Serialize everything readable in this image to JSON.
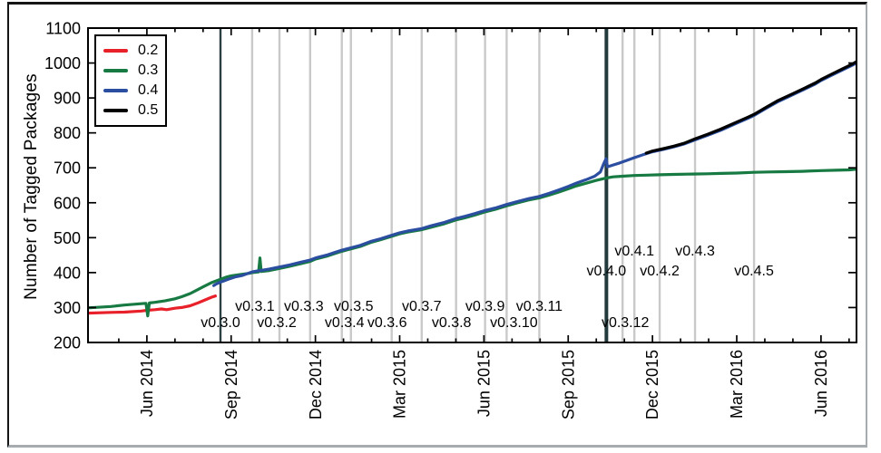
{
  "figure": {
    "ylabel": "Number of Tagged Packages"
  },
  "legend": {
    "items": [
      {
        "label": "0.2",
        "color": "#e8202a"
      },
      {
        "label": "0.3",
        "color": "#177a42"
      },
      {
        "label": "0.4",
        "color": "#2b4ea0"
      },
      {
        "label": "0.5",
        "color": "#000000"
      }
    ]
  },
  "chart_data": {
    "type": "line",
    "title": "",
    "xlabel": "",
    "ylabel": "Number of Tagged Packages",
    "ylim": [
      200,
      1100
    ],
    "xlim_years": [
      2014.242,
      2016.522
    ],
    "grid": "vertical-release-lines",
    "legend_position": "upper-left",
    "colors": {
      "grid_line": "#c9c9c9",
      "release_dark": "#2c4043",
      "release_major": "#233a3c",
      "axis": "#000000"
    },
    "y_ticks": [
      200,
      300,
      400,
      500,
      600,
      700,
      800,
      900,
      1000,
      1100
    ],
    "x_ticks": [
      {
        "year": 2014.417,
        "label": "Jun 2014"
      },
      {
        "year": 2014.667,
        "label": "Sep 2014"
      },
      {
        "year": 2014.917,
        "label": "Dec 2014"
      },
      {
        "year": 2015.167,
        "label": "Mar 2015"
      },
      {
        "year": 2015.417,
        "label": "Jun 2015"
      },
      {
        "year": 2015.667,
        "label": "Sep 2015"
      },
      {
        "year": 2015.917,
        "label": "Dec 2015"
      },
      {
        "year": 2016.167,
        "label": "Mar 2016"
      },
      {
        "year": 2016.417,
        "label": "Jun 2016"
      }
    ],
    "releases": [
      {
        "label": "v0.3.0",
        "year": 2014.635,
        "row": "v3l",
        "emph": 1,
        "dx": 0
      },
      {
        "label": "v0.3.1",
        "year": 2014.729,
        "row": "v3u",
        "emph": 0,
        "dx": 3
      },
      {
        "label": "v0.3.2",
        "year": 2014.81,
        "row": "v3l",
        "emph": 0,
        "dx": -3
      },
      {
        "label": "v0.3.3",
        "year": 2014.901,
        "row": "v3u",
        "emph": 0,
        "dx": -7
      },
      {
        "label": "v0.3.4",
        "year": 2014.995,
        "row": "v3l",
        "emph": 0,
        "dx": 3
      },
      {
        "label": "v0.3.5",
        "year": 2015.022,
        "row": "v3u",
        "emph": 0,
        "dx": 3
      },
      {
        "label": "v0.3.6",
        "year": 2015.143,
        "row": "v3l",
        "emph": 0,
        "dx": -5
      },
      {
        "label": "v0.3.7",
        "year": 2015.232,
        "row": "v3u",
        "emph": 0,
        "dx": 0
      },
      {
        "label": "v0.3.8",
        "year": 2015.334,
        "row": "v3l",
        "emph": 0,
        "dx": -5
      },
      {
        "label": "v0.3.9",
        "year": 2015.42,
        "row": "v3u",
        "emph": 0,
        "dx": 0
      },
      {
        "label": "v0.3.10",
        "year": 2015.484,
        "row": "v3l",
        "emph": 0,
        "dx": 8
      },
      {
        "label": "v0.3.11",
        "year": 2015.581,
        "row": "v3u",
        "emph": 0,
        "dx": 0
      },
      {
        "label": "v0.3.12",
        "year": 2015.828,
        "row": "v3l",
        "emph": 0,
        "dx": 3
      },
      {
        "label": "v0.4.0",
        "year": 2015.78,
        "row": "v4l",
        "emph": 2,
        "dx": 0
      },
      {
        "label": "v0.4.1",
        "year": 2015.863,
        "row": "v4u",
        "emph": 0,
        "dx": 0
      },
      {
        "label": "v0.4.2",
        "year": 2015.938,
        "row": "v4l",
        "emph": 0,
        "dx": 0
      },
      {
        "label": "v0.4.3",
        "year": 2016.043,
        "row": "v4u",
        "emph": 0,
        "dx": 0
      },
      {
        "label": "v0.4.5",
        "year": 2016.218,
        "row": "v4l",
        "emph": 0,
        "dx": 0
      }
    ],
    "series": [
      {
        "name": "0.2",
        "color": "#e8202a",
        "points": [
          [
            2014.242,
            284
          ],
          [
            2014.31,
            286
          ],
          [
            2014.35,
            287
          ],
          [
            2014.4,
            290
          ],
          [
            2014.417,
            292
          ],
          [
            2014.44,
            294
          ],
          [
            2014.46,
            296
          ],
          [
            2014.475,
            294
          ],
          [
            2014.5,
            298
          ],
          [
            2014.52,
            300
          ],
          [
            2014.545,
            305
          ],
          [
            2014.565,
            312
          ],
          [
            2014.58,
            318
          ],
          [
            2014.6,
            326
          ],
          [
            2014.61,
            330
          ],
          [
            2014.62,
            333
          ]
        ]
      },
      {
        "name": "0.3",
        "color": "#177a42",
        "points": [
          [
            2014.242,
            299
          ],
          [
            2014.31,
            303
          ],
          [
            2014.35,
            307
          ],
          [
            2014.4,
            311
          ],
          [
            2014.414,
            312
          ],
          [
            2014.419,
            276
          ],
          [
            2014.424,
            313
          ],
          [
            2014.44,
            315
          ],
          [
            2014.47,
            319
          ],
          [
            2014.5,
            325
          ],
          [
            2014.52,
            331
          ],
          [
            2014.545,
            340
          ],
          [
            2014.565,
            350
          ],
          [
            2014.585,
            360
          ],
          [
            2014.61,
            372
          ],
          [
            2014.635,
            381
          ],
          [
            2014.655,
            388
          ],
          [
            2014.667,
            391
          ],
          [
            2014.69,
            394
          ],
          [
            2014.72,
            398
          ],
          [
            2014.729,
            400
          ],
          [
            2014.748,
            402
          ],
          [
            2014.752,
            442
          ],
          [
            2014.756,
            403
          ],
          [
            2014.78,
            406
          ],
          [
            2014.81,
            412
          ],
          [
            2014.84,
            418
          ],
          [
            2014.87,
            425
          ],
          [
            2014.901,
            432
          ],
          [
            2014.917,
            439
          ],
          [
            2014.95,
            447
          ],
          [
            2014.975,
            455
          ],
          [
            2014.995,
            461
          ],
          [
            2015.022,
            468
          ],
          [
            2015.05,
            475
          ],
          [
            2015.08,
            486
          ],
          [
            2015.11,
            494
          ],
          [
            2015.143,
            504
          ],
          [
            2015.167,
            511
          ],
          [
            2015.19,
            516
          ],
          [
            2015.232,
            523
          ],
          [
            2015.26,
            530
          ],
          [
            2015.3,
            540
          ],
          [
            2015.334,
            551
          ],
          [
            2015.36,
            557
          ],
          [
            2015.39,
            565
          ],
          [
            2015.417,
            573
          ],
          [
            2015.45,
            581
          ],
          [
            2015.484,
            591
          ],
          [
            2015.51,
            598
          ],
          [
            2015.55,
            608
          ],
          [
            2015.581,
            614
          ],
          [
            2015.61,
            622
          ],
          [
            2015.64,
            631
          ],
          [
            2015.667,
            640
          ],
          [
            2015.69,
            648
          ],
          [
            2015.72,
            656
          ],
          [
            2015.75,
            664
          ],
          [
            2015.78,
            671
          ],
          [
            2015.8,
            674
          ],
          [
            2015.828,
            676
          ],
          [
            2015.863,
            678
          ],
          [
            2015.9,
            679
          ],
          [
            2015.938,
            680
          ],
          [
            2015.98,
            681
          ],
          [
            2016.02,
            682
          ],
          [
            2016.08,
            683
          ],
          [
            2016.12,
            684
          ],
          [
            2016.167,
            685
          ],
          [
            2016.218,
            687
          ],
          [
            2016.26,
            688
          ],
          [
            2016.31,
            689
          ],
          [
            2016.36,
            690
          ],
          [
            2016.417,
            692
          ],
          [
            2016.46,
            693
          ],
          [
            2016.5,
            694
          ],
          [
            2016.522,
            696
          ]
        ]
      },
      {
        "name": "0.4",
        "color": "#2b4ea0",
        "points": [
          [
            2014.615,
            363
          ],
          [
            2014.62,
            366
          ],
          [
            2014.628,
            370
          ],
          [
            2014.635,
            373
          ],
          [
            2014.645,
            376
          ],
          [
            2014.655,
            380
          ],
          [
            2014.667,
            384
          ],
          [
            2014.68,
            388
          ],
          [
            2014.7,
            392
          ],
          [
            2014.715,
            397
          ],
          [
            2014.729,
            402
          ],
          [
            2014.74,
            404
          ],
          [
            2014.76,
            407
          ],
          [
            2014.78,
            410
          ],
          [
            2014.81,
            416
          ],
          [
            2014.84,
            422
          ],
          [
            2014.87,
            429
          ],
          [
            2014.901,
            436
          ],
          [
            2014.917,
            442
          ],
          [
            2014.95,
            450
          ],
          [
            2014.975,
            458
          ],
          [
            2014.995,
            464
          ],
          [
            2015.022,
            471
          ],
          [
            2015.05,
            478
          ],
          [
            2015.08,
            489
          ],
          [
            2015.11,
            497
          ],
          [
            2015.143,
            507
          ],
          [
            2015.167,
            514
          ],
          [
            2015.19,
            519
          ],
          [
            2015.232,
            526
          ],
          [
            2015.26,
            534
          ],
          [
            2015.3,
            544
          ],
          [
            2015.334,
            555
          ],
          [
            2015.36,
            561
          ],
          [
            2015.39,
            569
          ],
          [
            2015.417,
            577
          ],
          [
            2015.45,
            585
          ],
          [
            2015.484,
            595
          ],
          [
            2015.51,
            602
          ],
          [
            2015.55,
            612
          ],
          [
            2015.581,
            618
          ],
          [
            2015.61,
            627
          ],
          [
            2015.64,
            637
          ],
          [
            2015.667,
            647
          ],
          [
            2015.69,
            656
          ],
          [
            2015.72,
            666
          ],
          [
            2015.745,
            676
          ],
          [
            2015.762,
            688
          ],
          [
            2015.772,
            712
          ],
          [
            2015.779,
            726
          ],
          [
            2015.783,
            703
          ],
          [
            2015.8,
            708
          ],
          [
            2015.82,
            714
          ],
          [
            2015.84,
            721
          ],
          [
            2015.863,
            729
          ],
          [
            2015.89,
            738
          ],
          [
            2015.917,
            746
          ],
          [
            2015.95,
            753
          ],
          [
            2015.98,
            760
          ],
          [
            2016.01,
            768
          ],
          [
            2016.043,
            780
          ],
          [
            2016.08,
            793
          ],
          [
            2016.12,
            808
          ],
          [
            2016.167,
            828
          ],
          [
            2016.2,
            842
          ],
          [
            2016.218,
            850
          ],
          [
            2016.25,
            868
          ],
          [
            2016.29,
            890
          ],
          [
            2016.33,
            908
          ],
          [
            2016.37,
            926
          ],
          [
            2016.4,
            940
          ],
          [
            2016.417,
            950
          ],
          [
            2016.45,
            966
          ],
          [
            2016.48,
            980
          ],
          [
            2016.51,
            994
          ],
          [
            2016.522,
            1000
          ]
        ]
      },
      {
        "name": "0.5",
        "color": "#000000",
        "points": [
          [
            2015.898,
            742
          ],
          [
            2015.917,
            748
          ],
          [
            2015.95,
            755
          ],
          [
            2015.98,
            762
          ],
          [
            2016.01,
            770
          ],
          [
            2016.043,
            783
          ],
          [
            2016.08,
            796
          ],
          [
            2016.12,
            811
          ],
          [
            2016.167,
            831
          ],
          [
            2016.2,
            845
          ],
          [
            2016.218,
            853
          ],
          [
            2016.25,
            871
          ],
          [
            2016.29,
            893
          ],
          [
            2016.33,
            911
          ],
          [
            2016.37,
            929
          ],
          [
            2016.4,
            943
          ],
          [
            2016.417,
            953
          ],
          [
            2016.45,
            969
          ],
          [
            2016.48,
            983
          ],
          [
            2016.51,
            997
          ],
          [
            2016.522,
            1004
          ]
        ]
      }
    ]
  }
}
